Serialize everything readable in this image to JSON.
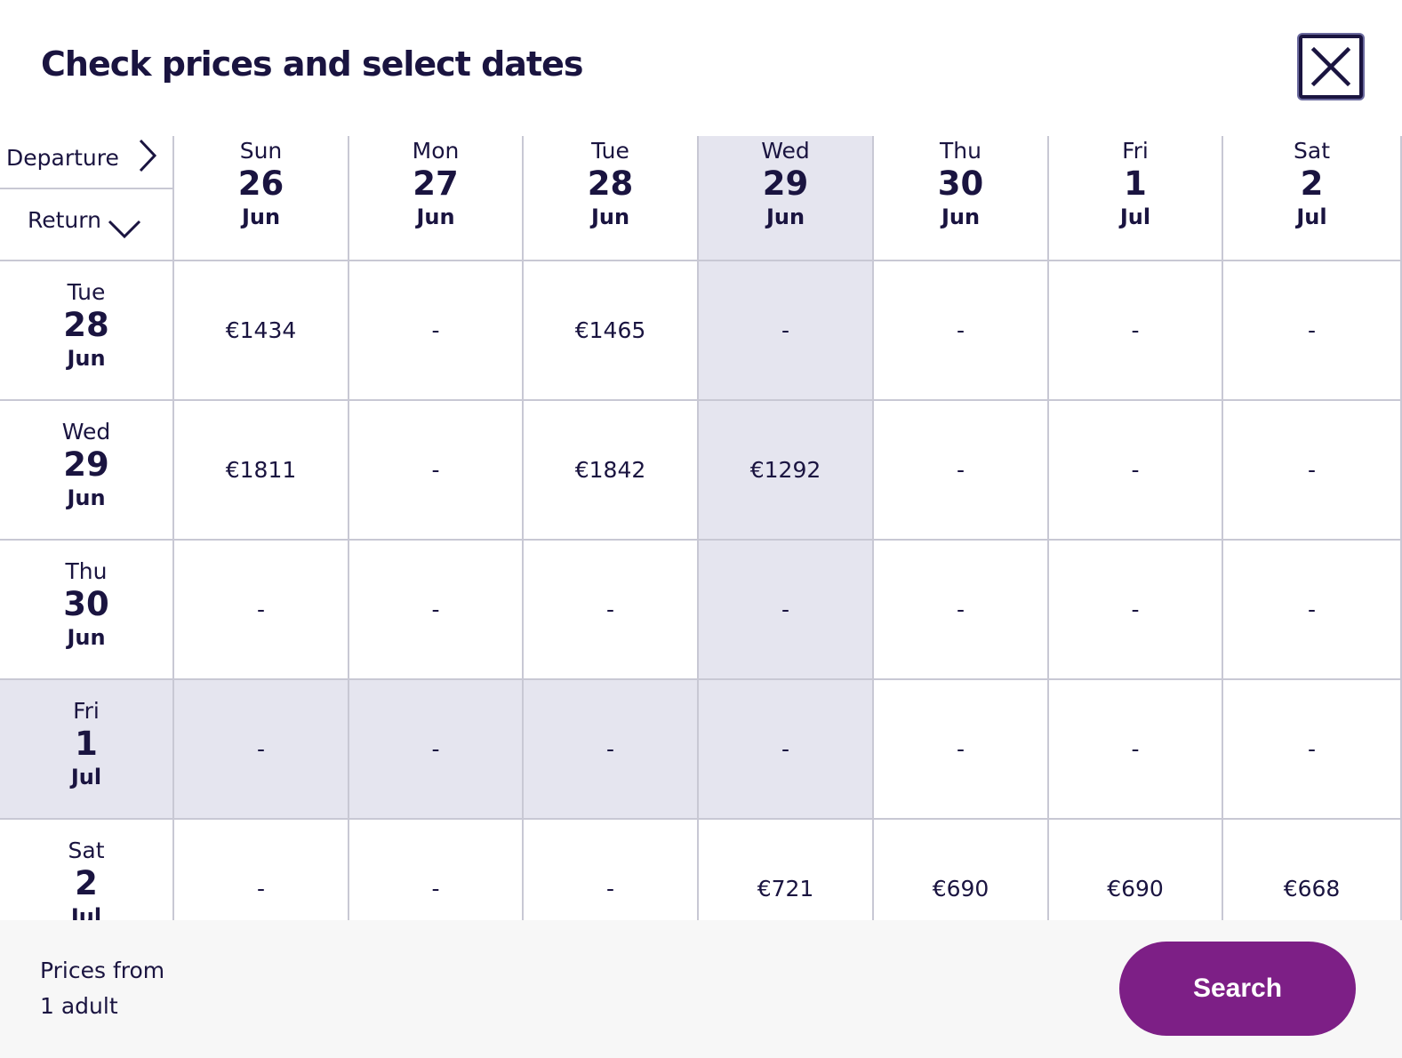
{
  "header": {
    "title": "Check prices and select dates",
    "close_icon": "close-icon"
  },
  "corner": {
    "departure_label": "Departure",
    "departure_icon": "chevron-right-icon",
    "return_label": "Return",
    "return_icon": "chevron-down-icon"
  },
  "highlight_color": "#e5e5ef",
  "departure_dates": [
    {
      "weekday": "Sun",
      "day": "26",
      "month": "Jun"
    },
    {
      "weekday": "Mon",
      "day": "27",
      "month": "Jun"
    },
    {
      "weekday": "Tue",
      "day": "28",
      "month": "Jun"
    },
    {
      "weekday": "Wed",
      "day": "29",
      "month": "Jun",
      "selected": true
    },
    {
      "weekday": "Thu",
      "day": "30",
      "month": "Jun"
    },
    {
      "weekday": "Fri",
      "day": "1",
      "month": "Jul"
    },
    {
      "weekday": "Sat",
      "day": "2",
      "month": "Jul"
    }
  ],
  "return_dates": [
    {
      "weekday": "Tue",
      "day": "28",
      "month": "Jun"
    },
    {
      "weekday": "Wed",
      "day": "29",
      "month": "Jun"
    },
    {
      "weekday": "Thu",
      "day": "30",
      "month": "Jun"
    },
    {
      "weekday": "Fri",
      "day": "1",
      "month": "Jul",
      "selected": true
    },
    {
      "weekday": "Sat",
      "day": "2",
      "month": "Jul"
    }
  ],
  "prices": [
    [
      "€1434",
      "-",
      "€1465",
      "-",
      "-",
      "-",
      "-"
    ],
    [
      "€1811",
      "-",
      "€1842",
      "€1292",
      "-",
      "-",
      "-"
    ],
    [
      "-",
      "-",
      "-",
      "-",
      "-",
      "-",
      "-"
    ],
    [
      "-",
      "-",
      "-",
      "-",
      "-",
      "-",
      "-"
    ],
    [
      "-",
      "-",
      "-",
      "€721",
      "€690",
      "€690",
      "€668"
    ]
  ],
  "footer": {
    "prices_from": "Prices from",
    "passengers": "1 adult",
    "search_label": "Search",
    "search_color": "#7d1f86"
  }
}
